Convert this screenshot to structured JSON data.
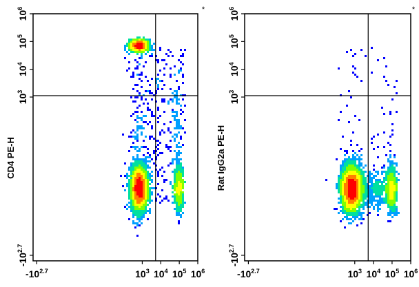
{
  "chart_data": [
    {
      "type": "scatter",
      "ylabel": "CD4 PE-H",
      "marker": "*",
      "x_ticks": [
        {
          "base": "-10",
          "exp": "2.7",
          "value": -2.7
        },
        {
          "base": "10",
          "exp": "3",
          "value": 3
        },
        {
          "base": "10",
          "exp": "4",
          "value": 4
        },
        {
          "base": "10",
          "exp": "5",
          "value": 5
        },
        {
          "base": "10",
          "exp": "6",
          "value": 6
        }
      ],
      "y_ticks": [
        {
          "base": "-10",
          "exp": "2.7",
          "value": -2.7
        },
        {
          "base": "10",
          "exp": "3",
          "value": 3
        },
        {
          "base": "10",
          "exp": "4",
          "value": 4
        },
        {
          "base": "10",
          "exp": "5",
          "value": 5
        },
        {
          "base": "10",
          "exp": "6",
          "value": 6
        }
      ],
      "xlim": [
        -2.9,
        6
      ],
      "ylim": [
        -2.9,
        6
      ],
      "quadrant_gate": {
        "x": 3.72,
        "y": 3.05
      },
      "populations": [
        {
          "name": "",
          "cx": 2.84,
          "cy": -0.3,
          "sx": 0.22,
          "sy": 0.42,
          "n": 2600
        },
        {
          "name": "",
          "cx": 2.83,
          "cy": 4.85,
          "sx": 0.26,
          "sy": 0.1,
          "n": 900
        },
        {
          "name": "",
          "cx": 4.99,
          "cy": -0.3,
          "sx": 0.1,
          "sy": 0.42,
          "n": 650
        }
      ],
      "scatter_sparse": 520,
      "colormap": [
        "#0000ff",
        "#00a0ff",
        "#00e0a0",
        "#80ff00",
        "#ffff00",
        "#ff8000",
        "#ff0000"
      ],
      "grid": false
    },
    {
      "type": "scatter",
      "ylabel": "Rat IgG2a PE-H",
      "marker": "*",
      "x_ticks": [
        {
          "base": "-10",
          "exp": "2.7",
          "value": -2.7
        },
        {
          "base": "10",
          "exp": "3",
          "value": 3
        },
        {
          "base": "10",
          "exp": "4",
          "value": 4
        },
        {
          "base": "10",
          "exp": "5",
          "value": 5
        },
        {
          "base": "10",
          "exp": "6",
          "value": 6
        }
      ],
      "y_ticks": [
        {
          "base": "-10",
          "exp": "2.7",
          "value": -2.7
        },
        {
          "base": "10",
          "exp": "3",
          "value": 3
        },
        {
          "base": "10",
          "exp": "4",
          "value": 4
        },
        {
          "base": "10",
          "exp": "5",
          "value": 5
        },
        {
          "base": "10",
          "exp": "6",
          "value": 6
        }
      ],
      "xlim": [
        -2.9,
        6
      ],
      "ylim": [
        -2.9,
        6
      ],
      "quadrant_gate": {
        "x": 3.72,
        "y": 3.05
      },
      "populations": [
        {
          "name": "",
          "cx": 2.84,
          "cy": -0.3,
          "sx": 0.28,
          "sy": 0.42,
          "n": 3200
        },
        {
          "name": "",
          "cx": 4.98,
          "cy": -0.3,
          "sx": 0.12,
          "sy": 0.42,
          "n": 750
        },
        {
          "name": "",
          "cx": 4.2,
          "cy": -0.4,
          "sx": 0.35,
          "sy": 0.35,
          "n": 250
        }
      ],
      "scatter_sparse": 90,
      "colormap": [
        "#0000ff",
        "#00a0ff",
        "#00e0a0",
        "#80ff00",
        "#ffff00",
        "#ff8000",
        "#ff0000"
      ],
      "grid": false
    }
  ]
}
